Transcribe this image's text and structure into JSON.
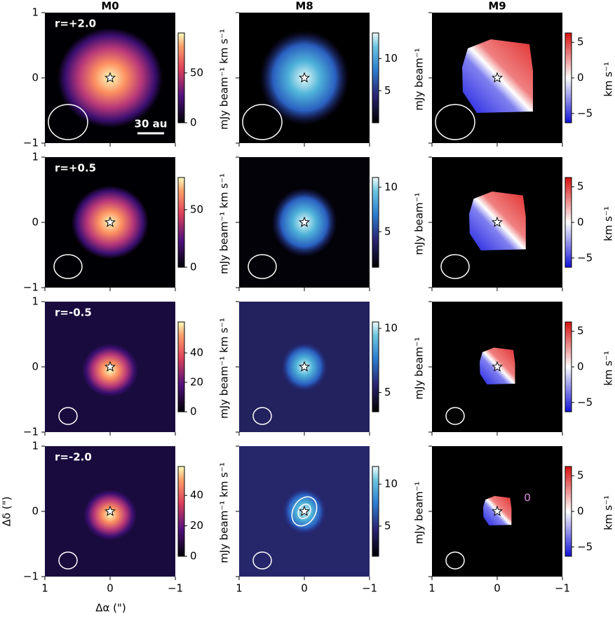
{
  "column_titles": [
    "M0",
    "M8",
    "M9"
  ],
  "axes": {
    "xlabel": "Δα (\")",
    "ylabel": "Δδ (\")",
    "xlim": [
      1,
      -1
    ],
    "xticks": [
      1,
      0,
      {
        "value": -1,
        "label": "−1"
      }
    ],
    "ylim": [
      -1,
      1
    ],
    "yticks": [
      {
        "value": -1,
        "label": "−1"
      },
      0,
      1
    ]
  },
  "scale_bar": "30 au",
  "colorbar_labels": [
    "mJy beam⁻¹ km s⁻¹",
    "mJy beam⁻¹",
    "km s⁻¹"
  ],
  "rows": [
    {
      "label": "r=+2.0",
      "colorbars": [
        {
          "lim": [
            0,
            90
          ],
          "ticks": [
            0,
            50
          ]
        },
        {
          "lim": [
            0,
            14
          ],
          "ticks": [
            5,
            10
          ]
        },
        {
          "lim": [
            -6.3,
            6.3
          ],
          "ticks": [
            {
              "value": -5,
              "label": "−5"
            },
            0,
            5
          ]
        }
      ]
    },
    {
      "label": "r=+0.5",
      "colorbars": [
        {
          "lim": [
            0,
            78
          ],
          "ticks": [
            0,
            50
          ]
        },
        {
          "lim": [
            1,
            11.1
          ],
          "ticks": [
            5,
            10
          ]
        },
        {
          "lim": [
            -6.3,
            6.3
          ],
          "ticks": [
            {
              "value": -5,
              "label": "−5"
            },
            0,
            5
          ]
        }
      ]
    },
    {
      "label": "r=-0.5",
      "colorbars": [
        {
          "lim": [
            0,
            61
          ],
          "ticks": [
            0,
            20,
            40
          ]
        },
        {
          "lim": [
            3.5,
            10.5
          ],
          "ticks": [
            5,
            10
          ]
        },
        {
          "lim": [
            -6.3,
            6.3
          ],
          "ticks": [
            {
              "value": -5,
              "label": "−5"
            },
            0,
            5
          ]
        }
      ]
    },
    {
      "label": "r=-2.0",
      "annotation": 0,
      "colorbars": [
        {
          "lim": [
            0,
            59
          ],
          "ticks": [
            0,
            20,
            40
          ]
        },
        {
          "lim": [
            1.4,
            12.1
          ],
          "ticks": [
            5,
            10
          ]
        },
        {
          "lim": [
            -6.3,
            6.3
          ],
          "ticks": [
            {
              "value": -5,
              "label": "−5"
            },
            0,
            5
          ]
        }
      ]
    }
  ]
}
